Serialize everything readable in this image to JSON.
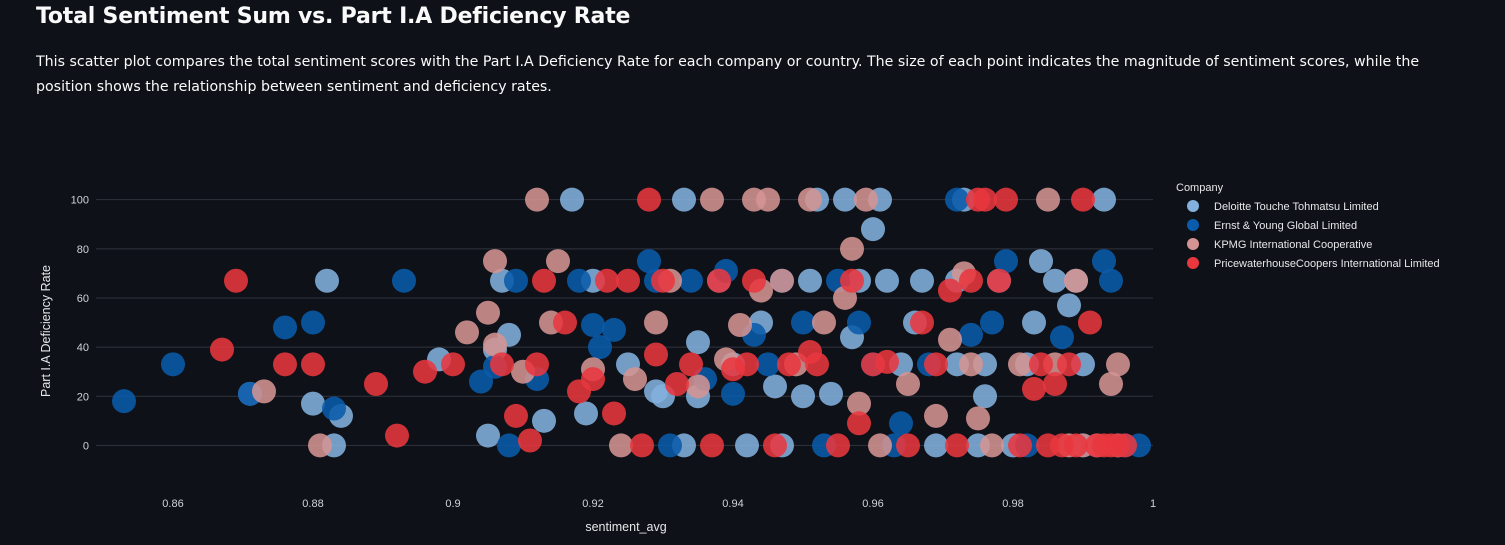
{
  "page": {
    "title": "Total Sentiment Sum vs. Part I.A Deficiency Rate",
    "description": "This scatter plot compares the total sentiment scores with the Part I.A Deficiency Rate for each company or country. The size of each point indicates the magnitude of sentiment scores, while the position shows the relationship between sentiment and deficiency rates."
  },
  "chart_data": {
    "type": "scatter",
    "xlabel": "sentiment_avg",
    "ylabel": "Part I.A Deficiency Rate",
    "xlim": [
      0.849,
      1.0
    ],
    "ylim": [
      -10,
      108
    ],
    "x_ticks": [
      0.86,
      0.88,
      0.9,
      0.92,
      0.94,
      0.96,
      0.98,
      1.0
    ],
    "x_tick_labels": [
      "0.86",
      "0.88",
      "0.9",
      "0.92",
      "0.94",
      "0.96",
      "0.98",
      "1"
    ],
    "y_ticks": [
      0,
      20,
      40,
      60,
      80,
      100
    ],
    "y_tick_labels": [
      "0",
      "20",
      "40",
      "60",
      "80",
      "100"
    ],
    "grid": "horizontal",
    "legend": {
      "title": "Company",
      "placement": "right"
    },
    "series": [
      {
        "name": "Deloitte Touche Tohmatsu Limited",
        "color": "#83b1de",
        "points": [
          [
            0.871,
            21
          ],
          [
            0.882,
            67
          ],
          [
            0.88,
            17
          ],
          [
            0.883,
            0
          ],
          [
            0.884,
            12
          ],
          [
            0.898,
            35
          ],
          [
            0.905,
            4
          ],
          [
            0.907,
            67
          ],
          [
            0.908,
            45
          ],
          [
            0.906,
            39
          ],
          [
            0.913,
            10
          ],
          [
            0.917,
            100
          ],
          [
            0.919,
            13
          ],
          [
            0.92,
            67
          ],
          [
            0.925,
            33
          ],
          [
            0.929,
            22
          ],
          [
            0.93,
            20
          ],
          [
            0.933,
            100
          ],
          [
            0.933,
            0
          ],
          [
            0.935,
            42
          ],
          [
            0.935,
            20
          ],
          [
            0.938,
            67
          ],
          [
            0.94,
            33
          ],
          [
            0.942,
            0
          ],
          [
            0.944,
            50
          ],
          [
            0.946,
            24
          ],
          [
            0.947,
            0
          ],
          [
            0.95,
            20
          ],
          [
            0.951,
            67
          ],
          [
            0.952,
            100
          ],
          [
            0.954,
            21
          ],
          [
            0.956,
            100
          ],
          [
            0.957,
            44
          ],
          [
            0.958,
            67
          ],
          [
            0.96,
            88
          ],
          [
            0.961,
            100
          ],
          [
            0.962,
            67
          ],
          [
            0.964,
            33
          ],
          [
            0.966,
            50
          ],
          [
            0.967,
            67
          ],
          [
            0.969,
            0
          ],
          [
            0.972,
            67
          ],
          [
            0.972,
            33
          ],
          [
            0.973,
            100
          ],
          [
            0.975,
            0
          ],
          [
            0.976,
            20
          ],
          [
            0.976,
            33
          ],
          [
            0.978,
            67
          ],
          [
            0.98,
            0
          ],
          [
            0.982,
            33
          ],
          [
            0.983,
            50
          ],
          [
            0.984,
            75
          ],
          [
            0.986,
            67
          ],
          [
            0.988,
            57
          ],
          [
            0.989,
            67
          ],
          [
            0.99,
            33
          ],
          [
            0.993,
            100
          ],
          [
            0.995,
            0
          ]
        ]
      },
      {
        "name": "Ernst & Young Global Limited",
        "color": "#0a5bab",
        "points": [
          [
            0.853,
            18
          ],
          [
            0.86,
            33
          ],
          [
            0.871,
            21
          ],
          [
            0.876,
            48
          ],
          [
            0.88,
            50
          ],
          [
            0.883,
            15
          ],
          [
            0.893,
            67
          ],
          [
            0.904,
            26
          ],
          [
            0.906,
            32
          ],
          [
            0.908,
            0
          ],
          [
            0.909,
            67
          ],
          [
            0.912,
            27
          ],
          [
            0.918,
            67
          ],
          [
            0.92,
            49
          ],
          [
            0.921,
            40
          ],
          [
            0.923,
            47
          ],
          [
            0.928,
            75
          ],
          [
            0.929,
            67
          ],
          [
            0.931,
            0
          ],
          [
            0.934,
            67
          ],
          [
            0.936,
            27
          ],
          [
            0.939,
            71
          ],
          [
            0.94,
            21
          ],
          [
            0.943,
            45
          ],
          [
            0.945,
            33
          ],
          [
            0.947,
            67
          ],
          [
            0.95,
            50
          ],
          [
            0.953,
            0
          ],
          [
            0.955,
            67
          ],
          [
            0.958,
            50
          ],
          [
            0.96,
            33
          ],
          [
            0.963,
            0
          ],
          [
            0.964,
            9
          ],
          [
            0.968,
            33
          ],
          [
            0.972,
            100
          ],
          [
            0.974,
            45
          ],
          [
            0.977,
            50
          ],
          [
            0.979,
            75
          ],
          [
            0.982,
            0
          ],
          [
            0.987,
            44
          ],
          [
            0.99,
            0
          ],
          [
            0.993,
            75
          ],
          [
            0.994,
            67
          ],
          [
            0.996,
            0
          ],
          [
            0.998,
            0
          ]
        ]
      },
      {
        "name": "KPMG International Cooperative",
        "color": "#d49493",
        "points": [
          [
            0.873,
            22
          ],
          [
            0.881,
            0
          ],
          [
            0.902,
            46
          ],
          [
            0.905,
            54
          ],
          [
            0.906,
            75
          ],
          [
            0.906,
            41
          ],
          [
            0.91,
            30
          ],
          [
            0.912,
            100
          ],
          [
            0.914,
            50
          ],
          [
            0.915,
            75
          ],
          [
            0.92,
            31
          ],
          [
            0.924,
            0
          ],
          [
            0.926,
            27
          ],
          [
            0.929,
            50
          ],
          [
            0.931,
            67
          ],
          [
            0.935,
            24
          ],
          [
            0.937,
            100
          ],
          [
            0.939,
            35
          ],
          [
            0.941,
            49
          ],
          [
            0.943,
            100
          ],
          [
            0.944,
            63
          ],
          [
            0.945,
            100
          ],
          [
            0.947,
            67
          ],
          [
            0.949,
            33
          ],
          [
            0.951,
            100
          ],
          [
            0.953,
            50
          ],
          [
            0.956,
            60
          ],
          [
            0.957,
            80
          ],
          [
            0.958,
            17
          ],
          [
            0.959,
            100
          ],
          [
            0.961,
            0
          ],
          [
            0.965,
            25
          ],
          [
            0.969,
            12
          ],
          [
            0.971,
            43
          ],
          [
            0.973,
            70
          ],
          [
            0.974,
            33
          ],
          [
            0.975,
            11
          ],
          [
            0.977,
            0
          ],
          [
            0.981,
            33
          ],
          [
            0.985,
            100
          ],
          [
            0.986,
            33
          ],
          [
            0.988,
            0
          ],
          [
            0.989,
            67
          ],
          [
            0.99,
            0
          ],
          [
            0.992,
            0
          ],
          [
            0.994,
            25
          ],
          [
            0.995,
            33
          ]
        ]
      },
      {
        "name": "PricewaterhouseCoopers International Limited",
        "color": "#e8373f",
        "points": [
          [
            0.867,
            39
          ],
          [
            0.869,
            67
          ],
          [
            0.876,
            33
          ],
          [
            0.88,
            33
          ],
          [
            0.889,
            25
          ],
          [
            0.892,
            4
          ],
          [
            0.896,
            30
          ],
          [
            0.9,
            33
          ],
          [
            0.907,
            33
          ],
          [
            0.909,
            12
          ],
          [
            0.911,
            2
          ],
          [
            0.912,
            33
          ],
          [
            0.913,
            67
          ],
          [
            0.916,
            50
          ],
          [
            0.918,
            22
          ],
          [
            0.92,
            27
          ],
          [
            0.922,
            67
          ],
          [
            0.923,
            13
          ],
          [
            0.925,
            67
          ],
          [
            0.927,
            0
          ],
          [
            0.928,
            100
          ],
          [
            0.929,
            37
          ],
          [
            0.93,
            67
          ],
          [
            0.932,
            25
          ],
          [
            0.934,
            33
          ],
          [
            0.937,
            0
          ],
          [
            0.938,
            67
          ],
          [
            0.94,
            31
          ],
          [
            0.942,
            33
          ],
          [
            0.943,
            67
          ],
          [
            0.946,
            0
          ],
          [
            0.948,
            33
          ],
          [
            0.951,
            38
          ],
          [
            0.952,
            33
          ],
          [
            0.955,
            0
          ],
          [
            0.957,
            67
          ],
          [
            0.958,
            9
          ],
          [
            0.96,
            33
          ],
          [
            0.962,
            34
          ],
          [
            0.965,
            0
          ],
          [
            0.967,
            50
          ],
          [
            0.969,
            33
          ],
          [
            0.971,
            63
          ],
          [
            0.972,
            0
          ],
          [
            0.974,
            67
          ],
          [
            0.975,
            100
          ],
          [
            0.976,
            100
          ],
          [
            0.978,
            67
          ],
          [
            0.979,
            100
          ],
          [
            0.981,
            0
          ],
          [
            0.983,
            23
          ],
          [
            0.984,
            33
          ],
          [
            0.985,
            0
          ],
          [
            0.986,
            25
          ],
          [
            0.987,
            0
          ],
          [
            0.988,
            33
          ],
          [
            0.989,
            0
          ],
          [
            0.99,
            100
          ],
          [
            0.991,
            50
          ],
          [
            0.992,
            0
          ],
          [
            0.993,
            0
          ],
          [
            0.994,
            0
          ],
          [
            0.995,
            0
          ],
          [
            0.996,
            0
          ]
        ]
      }
    ]
  }
}
